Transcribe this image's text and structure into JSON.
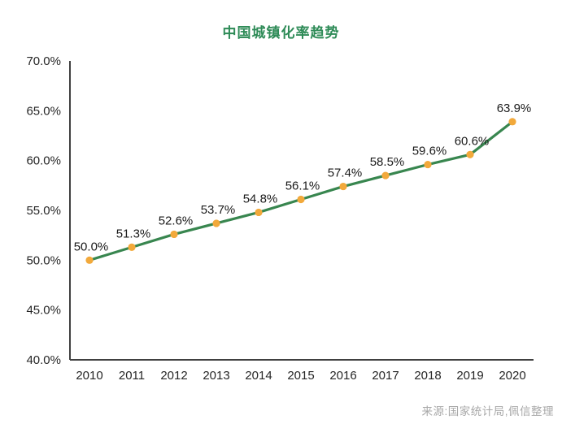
{
  "chart_data": {
    "type": "line",
    "title": "中国城镇化率趋势",
    "categories": [
      "2010",
      "2011",
      "2012",
      "2013",
      "2014",
      "2015",
      "2016",
      "2017",
      "2018",
      "2019",
      "2020"
    ],
    "values": [
      50.0,
      51.3,
      52.6,
      53.7,
      54.8,
      56.1,
      57.4,
      58.5,
      59.6,
      60.6,
      63.9
    ],
    "data_labels": [
      "50.0%",
      "51.3%",
      "52.6%",
      "53.7%",
      "54.8%",
      "56.1%",
      "57.4%",
      "58.5%",
      "59.6%",
      "60.6%",
      "63.9%"
    ],
    "ytick_labels": [
      "40.0%",
      "45.0%",
      "50.0%",
      "55.0%",
      "60.0%",
      "65.0%",
      "70.0%"
    ],
    "ylim": [
      40,
      70
    ],
    "ytick_step": 5,
    "xlabel": "",
    "ylabel": "",
    "grid": false,
    "legend": "none",
    "colors": {
      "line": "#38864F",
      "marker": "#F2A93B",
      "axis": "#404040",
      "tick_text": "#262626",
      "data_label_text": "#1a1a1a",
      "title_text": "#2E8B57",
      "source_text": "#A8A8A8"
    }
  },
  "source_note": "来源:国家统计局,佩信整理"
}
